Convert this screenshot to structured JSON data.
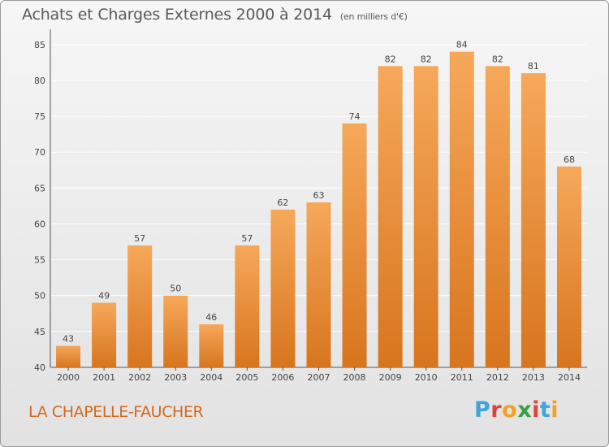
{
  "title": "Achats et Charges Externes 2000 à 2014",
  "subtitle": "(en milliers d'€)",
  "place": "LA CHAPELLE-FAUCHER",
  "logo": {
    "text": "Proxiti",
    "letter_colors": [
      "#3fa4d8",
      "#e2403a",
      "#f4a020",
      "#3f9e45",
      "#e2403a",
      "#3fa4d8",
      "#f4a020"
    ]
  },
  "colors": {
    "bar_top": "#f6a85a",
    "bar_bottom": "#d8751e",
    "grid": "#ffffff",
    "axis_text": "#444444",
    "place_text": "#d2691e"
  },
  "chart_data": {
    "type": "bar",
    "categories": [
      "2000",
      "2001",
      "2002",
      "2003",
      "2004",
      "2005",
      "2006",
      "2007",
      "2008",
      "2009",
      "2010",
      "2011",
      "2012",
      "2013",
      "2014"
    ],
    "values": [
      43,
      49,
      57,
      50,
      46,
      57,
      62,
      63,
      74,
      82,
      82,
      84,
      82,
      81,
      68
    ],
    "ylim": [
      40,
      86
    ],
    "yticks": [
      40,
      45,
      50,
      55,
      60,
      65,
      70,
      75,
      80,
      85
    ],
    "grid": true
  }
}
